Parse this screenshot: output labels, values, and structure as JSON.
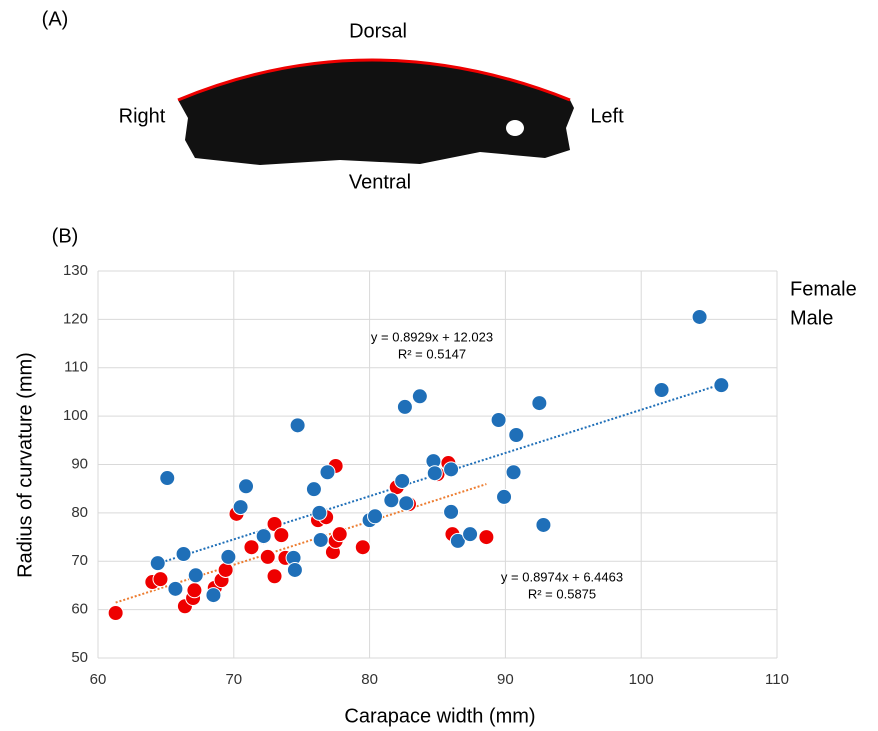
{
  "labels": {
    "panel_a": "(A)",
    "panel_b": "(B)",
    "dorsal": "Dorsal",
    "ventral": "Ventral",
    "right": "Right",
    "left": "Left"
  },
  "chart_data": {
    "type": "scatter",
    "x_label": "Carapace width (mm)",
    "y_label": "Radius of curvature (mm)",
    "xlim": [
      60,
      110
    ],
    "xticks": [
      60,
      70,
      80,
      90,
      100,
      110
    ],
    "ylim": [
      50,
      130
    ],
    "yticks": [
      50,
      60,
      70,
      80,
      90,
      100,
      110,
      120,
      130
    ],
    "grid": true,
    "legend": "top-right",
    "series": [
      {
        "name": "Female",
        "color": "#ee0000",
        "x": [
          61.3,
          64.0,
          64.6,
          66.4,
          67.0,
          67.1,
          68.6,
          69.1,
          69.4,
          70.2,
          71.3,
          72.2,
          72.5,
          73.0,
          73.0,
          73.5,
          73.8,
          76.2,
          76.8,
          77.3,
          77.5,
          77.5,
          77.8,
          79.5,
          82.0,
          82.9,
          85.0,
          85.8,
          86.1,
          88.6
        ],
        "values": [
          59.3,
          65.7,
          66.3,
          60.7,
          62.4,
          64.0,
          64.5,
          66.1,
          68.2,
          79.8,
          72.9,
          75.0,
          70.9,
          77.7,
          66.9,
          75.4,
          70.7,
          78.5,
          79.1,
          71.9,
          74.2,
          89.7,
          75.6,
          72.9,
          85.3,
          81.8,
          88.0,
          90.3,
          75.6,
          75.0
        ],
        "trendline": {
          "slope": 0.8974,
          "intercept": 6.4463,
          "color": "#ed7d31",
          "equation": "y = 0.8974x + 6.4463",
          "r2": "R² = 0.5875"
        }
      },
      {
        "name": "Male",
        "color": "#1f6fb8",
        "x": [
          64.4,
          65.1,
          65.7,
          66.3,
          67.2,
          68.5,
          69.6,
          70.5,
          70.9,
          72.2,
          74.4,
          74.5,
          74.7,
          75.9,
          76.3,
          76.4,
          76.9,
          80.0,
          80.4,
          81.6,
          82.4,
          82.6,
          82.7,
          83.7,
          84.7,
          84.8,
          86.0,
          86.0,
          86.5,
          87.4,
          89.5,
          89.9,
          90.6,
          90.8,
          92.5,
          92.8,
          101.5,
          104.3,
          105.9
        ],
        "values": [
          69.6,
          87.2,
          64.3,
          71.5,
          67.1,
          63.0,
          70.9,
          81.2,
          85.5,
          75.2,
          70.7,
          68.2,
          98.1,
          84.9,
          80.0,
          74.4,
          88.4,
          78.5,
          79.3,
          82.6,
          86.6,
          101.9,
          82.0,
          104.1,
          90.7,
          88.2,
          80.2,
          89.0,
          74.2,
          75.6,
          99.2,
          83.3,
          88.4,
          96.1,
          102.7,
          77.5,
          105.4,
          120.5,
          106.4
        ],
        "trendline": {
          "slope": 0.8929,
          "intercept": 12.023,
          "color": "#1f6fb8",
          "equation": "y = 0.8929x + 12.023",
          "r2": "R² = 0.5147"
        }
      }
    ]
  }
}
